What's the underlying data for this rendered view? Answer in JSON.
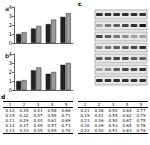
{
  "chart_data": [
    {
      "type": "bar",
      "title": "a",
      "categories": [
        null,
        null,
        null,
        null
      ],
      "series": [
        {
          "color": "#222222",
          "values": [
            1.0,
            1.6,
            2.1,
            2.9
          ]
        },
        {
          "color": "#9a9a9a",
          "values": [
            1.2,
            1.9,
            2.6,
            3.3
          ]
        }
      ],
      "ylim": [
        0,
        4
      ],
      "yticks": [
        0,
        1,
        2,
        3,
        4
      ],
      "grid": false,
      "tick_labels": "y"
    },
    {
      "type": "bar",
      "title": "b",
      "categories": [
        null,
        null,
        null,
        null
      ],
      "series": [
        {
          "color": "#222222",
          "values": [
            1.0,
            2.2,
            1.8,
            2.8
          ]
        },
        {
          "color": "#9a9a9a",
          "values": [
            1.1,
            2.5,
            2.0,
            3.0
          ]
        }
      ],
      "ylim": [
        0,
        4
      ],
      "yticks": [
        0,
        1,
        2,
        3,
        4
      ],
      "grid": false,
      "tick_labels": "y"
    }
  ],
  "blot": {
    "label": "c",
    "bands": [
      [
        0.8,
        0.8,
        0.8,
        0.8,
        0.8,
        0.8
      ],
      [
        0.3,
        0.5,
        0.6,
        0.7,
        0.8,
        0.9
      ],
      [
        0.7,
        0.6,
        0.5,
        0.4,
        0.3,
        0.3
      ],
      [
        0.4,
        0.5,
        0.6,
        0.6,
        0.7,
        0.8
      ],
      [
        0.6,
        0.6,
        0.7,
        0.7,
        0.6,
        0.6
      ],
      [
        0.3,
        0.4,
        0.6,
        0.7,
        0.7,
        0.8
      ],
      [
        0.8,
        0.8,
        0.8,
        0.8,
        0.8,
        0.8
      ]
    ]
  },
  "table": {
    "label": "d",
    "tables": [
      {
        "rows": [
          [
            "1",
            "2",
            "3",
            "4",
            "5"
          ],
          [
            "0.12",
            "0.35",
            "0.41",
            "0.58",
            "0.66"
          ],
          [
            "0.15",
            "0.32",
            "0.47",
            "0.55",
            "0.71"
          ],
          [
            "0.11",
            "0.29",
            "0.44",
            "0.61",
            "0.69"
          ],
          [
            "0.14",
            "0.37",
            "0.49",
            "0.57",
            "0.73"
          ],
          [
            "0.13",
            "0.33",
            "0.45",
            "0.59",
            "0.70"
          ]
        ]
      },
      {
        "rows": [
          [
            "1",
            "2",
            "3",
            "4",
            "5"
          ],
          [
            "0.21",
            "0.38",
            "0.52",
            "0.64",
            "0.77"
          ],
          [
            "0.19",
            "0.41",
            "0.55",
            "0.62",
            "0.79"
          ],
          [
            "0.23",
            "0.36",
            "0.50",
            "0.67",
            "0.75"
          ],
          [
            "0.20",
            "0.39",
            "0.53",
            "0.65",
            "0.78"
          ],
          [
            "0.22",
            "0.40",
            "0.51",
            "0.63",
            "0.76"
          ]
        ]
      }
    ]
  }
}
